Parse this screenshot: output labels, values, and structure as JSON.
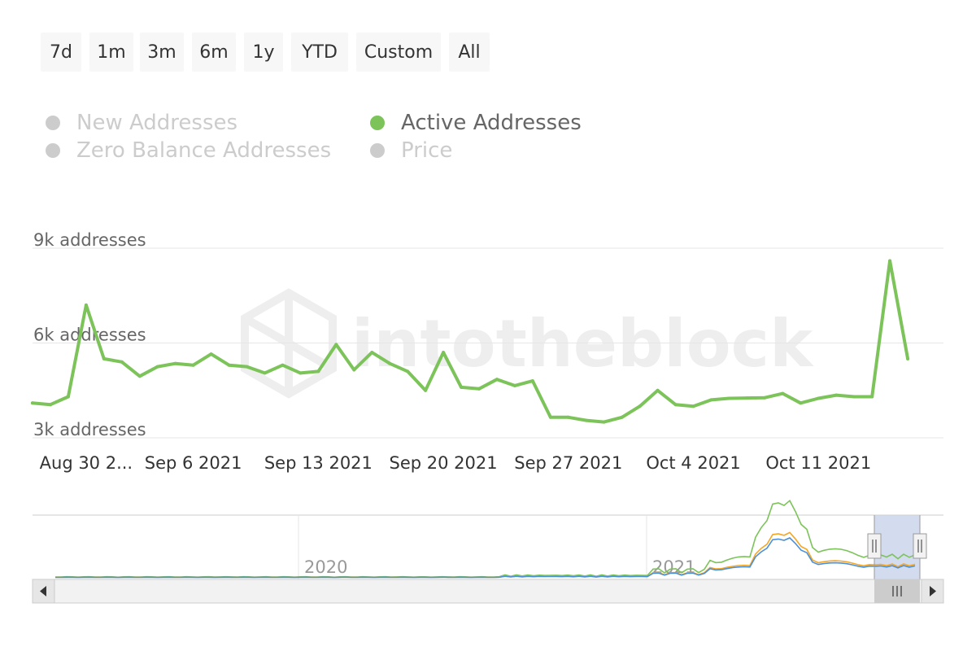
{
  "range_selector": {
    "buttons": [
      {
        "label": "7d"
      },
      {
        "label": "1m"
      },
      {
        "label": "3m"
      },
      {
        "label": "6m"
      },
      {
        "label": "1y"
      },
      {
        "label": "YTD"
      },
      {
        "label": "Custom"
      },
      {
        "label": "All"
      }
    ]
  },
  "legend": {
    "items": [
      {
        "label": "New Addresses",
        "active": false,
        "color": "#cccccc"
      },
      {
        "label": "Active Addresses",
        "active": true,
        "color": "#7cc35a"
      },
      {
        "label": "Zero Balance Addresses",
        "active": false,
        "color": "#cccccc"
      },
      {
        "label": "Price",
        "active": false,
        "color": "#cccccc"
      }
    ]
  },
  "watermark": "intotheblock",
  "colors": {
    "active_line": "#7cc35a",
    "nav_blue": "#4a90d9",
    "nav_orange": "#f5a623",
    "nav_green": "#7cc35a",
    "nav_selection": "#c8d2ea",
    "grid": "#e6e6e6"
  },
  "chart_data": {
    "type": "line",
    "y_axis": {
      "ticks": [
        {
          "value": 3000,
          "label": "3k addresses"
        },
        {
          "value": 6000,
          "label": "6k addresses"
        },
        {
          "value": 9000,
          "label": "9k addresses"
        }
      ],
      "range": [
        3000,
        9000
      ]
    },
    "x_axis": {
      "start": "2021-08-28",
      "end": "2021-10-18",
      "ticks": [
        {
          "date": "2021-08-31",
          "label": "Aug 30 2..."
        },
        {
          "date": "2021-09-06",
          "label": "Sep 6 2021"
        },
        {
          "date": "2021-09-13",
          "label": "Sep 13 2021"
        },
        {
          "date": "2021-09-20",
          "label": "Sep 20 2021"
        },
        {
          "date": "2021-09-27",
          "label": "Sep 27 2021"
        },
        {
          "date": "2021-10-04",
          "label": "Oct 4 2021"
        },
        {
          "date": "2021-10-11",
          "label": "Oct 11 2021"
        }
      ]
    },
    "series": [
      {
        "name": "Active Addresses",
        "points": [
          [
            "2021-08-28",
            4100
          ],
          [
            "2021-08-29",
            4050
          ],
          [
            "2021-08-30",
            4300
          ],
          [
            "2021-08-31",
            7200
          ],
          [
            "2021-09-01",
            5500
          ],
          [
            "2021-09-02",
            5400
          ],
          [
            "2021-09-03",
            4950
          ],
          [
            "2021-09-04",
            5250
          ],
          [
            "2021-09-05",
            5350
          ],
          [
            "2021-09-06",
            5300
          ],
          [
            "2021-09-07",
            5650
          ],
          [
            "2021-09-08",
            5300
          ],
          [
            "2021-09-09",
            5250
          ],
          [
            "2021-09-10",
            5050
          ],
          [
            "2021-09-11",
            5300
          ],
          [
            "2021-09-12",
            5050
          ],
          [
            "2021-09-13",
            5100
          ],
          [
            "2021-09-14",
            5950
          ],
          [
            "2021-09-15",
            5150
          ],
          [
            "2021-09-16",
            5700
          ],
          [
            "2021-09-17",
            5350
          ],
          [
            "2021-09-18",
            5100
          ],
          [
            "2021-09-19",
            4500
          ],
          [
            "2021-09-20",
            5700
          ],
          [
            "2021-09-21",
            4600
          ],
          [
            "2021-09-22",
            4550
          ],
          [
            "2021-09-23",
            4850
          ],
          [
            "2021-09-24",
            4650
          ],
          [
            "2021-09-25",
            4800
          ],
          [
            "2021-09-26",
            3650
          ],
          [
            "2021-09-27",
            3650
          ],
          [
            "2021-09-28",
            3550
          ],
          [
            "2021-09-29",
            3500
          ],
          [
            "2021-09-30",
            3650
          ],
          [
            "2021-10-01",
            4000
          ],
          [
            "2021-10-02",
            4500
          ],
          [
            "2021-10-03",
            4050
          ],
          [
            "2021-10-04",
            4000
          ],
          [
            "2021-10-05",
            4200
          ],
          [
            "2021-10-06",
            4250
          ],
          [
            "2021-10-07",
            4260
          ],
          [
            "2021-10-08",
            4270
          ],
          [
            "2021-10-09",
            4400
          ],
          [
            "2021-10-10",
            4100
          ],
          [
            "2021-10-11",
            4250
          ],
          [
            "2021-10-12",
            4350
          ],
          [
            "2021-10-13",
            4300
          ],
          [
            "2021-10-14",
            4300
          ],
          [
            "2021-10-15",
            8600
          ],
          [
            "2021-10-16",
            5500
          ]
        ]
      }
    ],
    "navigator": {
      "labels": [
        "2020",
        "2021"
      ],
      "selection": {
        "start": "2021-08-28",
        "end": "2021-10-18"
      }
    }
  }
}
